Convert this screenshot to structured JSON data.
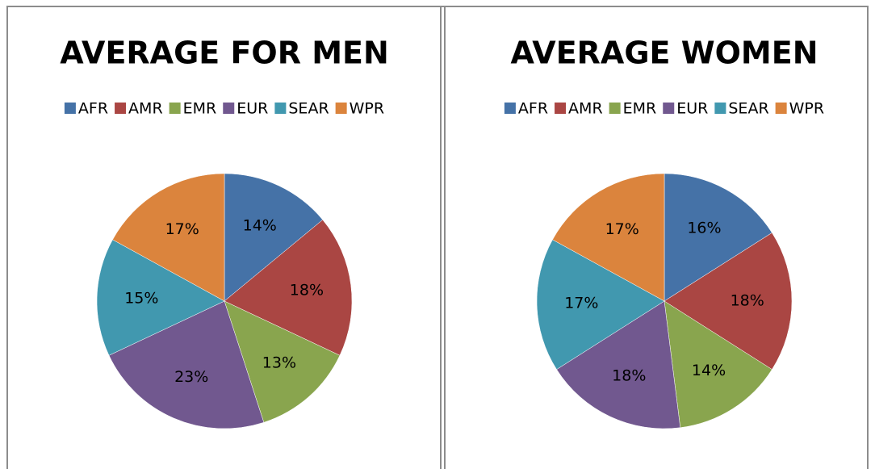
{
  "chart_data": [
    {
      "type": "pie",
      "title": "AVERAGE FOR MEN",
      "categories": [
        "AFR",
        "AMR",
        "EMR",
        "EUR",
        "SEAR",
        "WPR"
      ],
      "values": [
        14,
        18,
        13,
        23,
        15,
        17
      ],
      "value_labels": [
        "14%",
        "18%",
        "13%",
        "23%",
        "15%",
        "17%"
      ],
      "colors": [
        "#4572a7",
        "#aa4643",
        "#89a54e",
        "#71588f",
        "#4198af",
        "#db843d"
      ],
      "legend": "top"
    },
    {
      "type": "pie",
      "title": "AVERAGE WOMEN",
      "categories": [
        "AFR",
        "AMR",
        "EMR",
        "EUR",
        "SEAR",
        "WPR"
      ],
      "values": [
        16,
        18,
        14,
        18,
        17,
        17
      ],
      "value_labels": [
        "16%",
        "18%",
        "14%",
        "18%",
        "17%",
        "17%"
      ],
      "colors": [
        "#4572a7",
        "#aa4643",
        "#89a54e",
        "#71588f",
        "#4198af",
        "#db843d"
      ],
      "legend": "top"
    }
  ]
}
